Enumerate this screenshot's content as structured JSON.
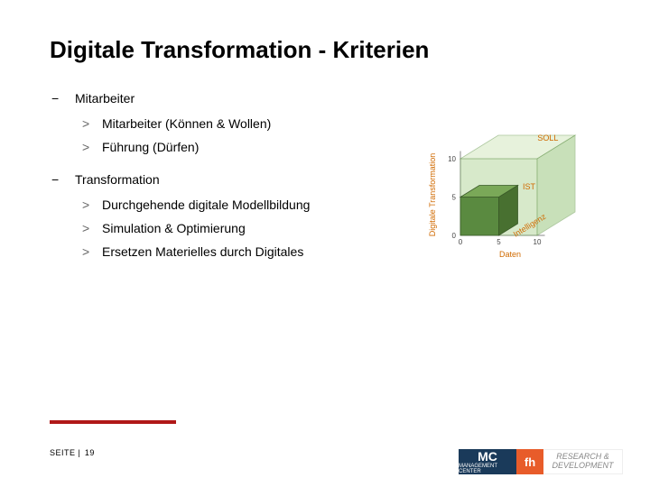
{
  "title": "Digitale Transformation - Kriterien",
  "sections": [
    {
      "label": "Mitarbeiter",
      "items": [
        "Mitarbeiter (Können & Wollen)",
        "Führung (Dürfen)"
      ]
    },
    {
      "label": "Transformation",
      "items": [
        "Durchgehende digitale Modellbildung",
        "Simulation & Optimierung",
        "Ersetzen Materielles durch Digitales"
      ]
    }
  ],
  "figure": {
    "type": "3d-cube-diagram",
    "axes": {
      "x": {
        "label": "Daten",
        "ticks": [
          0,
          5,
          10
        ],
        "color": "#333333"
      },
      "y": {
        "label": "Digitale Transformation",
        "ticks": [
          0,
          5,
          10
        ],
        "color": "#333333"
      },
      "z": {
        "label": "Intelligenz",
        "ticks": [
          0,
          5,
          10
        ],
        "color": "#333333"
      }
    },
    "cubes": [
      {
        "name": "SOLL",
        "label": "SOLL",
        "label_color": "#d06a00",
        "size": 10,
        "face_colors": {
          "top": "#d4e8c0",
          "front": "#b8d8a0",
          "side": "#9cc880"
        },
        "edge_color": "#6a9a50",
        "opacity": 0.55
      },
      {
        "name": "IST",
        "label": "IST",
        "label_color": "#d06a00",
        "size": 5,
        "face_colors": {
          "top": "#7aa858",
          "front": "#5a8a40",
          "side": "#487030"
        },
        "edge_color": "#3a5a28",
        "opacity": 1.0
      }
    ],
    "axis_label_color": "#d06a00",
    "tick_fontsize": 8,
    "label_fontsize": 9
  },
  "footer": {
    "prefix": "SEITE |",
    "page": "19",
    "accent_bar_color": "#b01818"
  },
  "logos": {
    "mc": {
      "big": "MC",
      "small": "MANAGEMENT CENTER"
    },
    "fh": "fh",
    "rd": "RESEARCH & DEVELOPMENT"
  },
  "colors": {
    "text": "#000000",
    "bg": "#ffffff",
    "mc_bg": "#1a3a5a",
    "fh_bg": "#e85c2a",
    "rd_text": "#888888"
  }
}
